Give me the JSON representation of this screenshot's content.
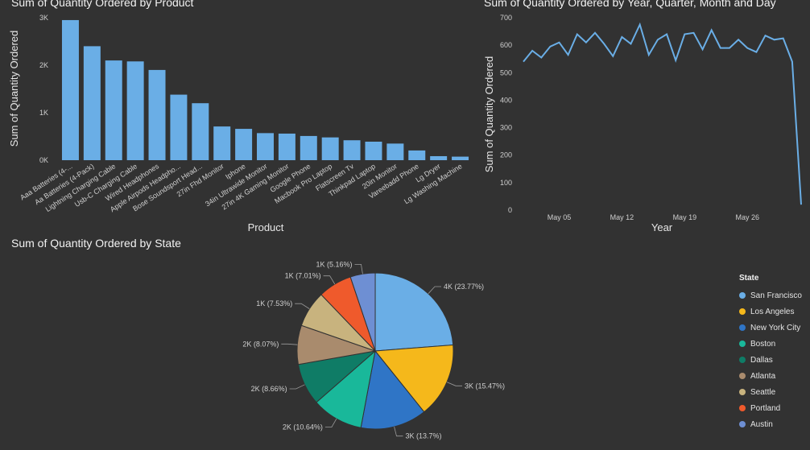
{
  "chart_data": [
    {
      "type": "bar",
      "title": "Sum of Quantity Ordered by Product",
      "xlabel": "Product",
      "ylabel": "Sum of Quantity Ordered",
      "ylim": [
        0,
        3000
      ],
      "yticks": [
        "0K",
        "1K",
        "2K",
        "3K"
      ],
      "categories": [
        "Aaa Batteries (4-...",
        "Aa Batteries (4-Pack)",
        "Lightning Charging Cable",
        "Usb-C Charging Cable",
        "Wired Headphones",
        "Apple Airpods Headpho...",
        "Bose Soundsport Head...",
        "27in Fhd Monitor",
        "Iphone",
        "34in Ultrawide Monitor",
        "27in 4K Gaming Monitor",
        "Google Phone",
        "Macbook Pro Laptop",
        "Flatscreen Tv",
        "Thinkpad Laptop",
        "20in Monitor",
        "Vareebadd Phone",
        "Lg Dryer",
        "Lg Washing Machine"
      ],
      "values": [
        2950,
        2400,
        2100,
        2080,
        1900,
        1380,
        1200,
        710,
        660,
        570,
        560,
        510,
        480,
        420,
        390,
        350,
        205,
        85,
        75
      ],
      "color": "#6aaee6"
    },
    {
      "type": "line",
      "title": "Sum of Quantity Ordered by Year, Quarter, Month and Day",
      "xlabel": "Year",
      "ylabel": "Sum of Quantity Ordered",
      "ylim": [
        0,
        700
      ],
      "yticks": [
        "0",
        "100",
        "200",
        "300",
        "400",
        "500",
        "600",
        "700"
      ],
      "xticks": [
        "May 05",
        "May 12",
        "May 19",
        "May 26"
      ],
      "x": [
        "May 01",
        "May 02",
        "May 03",
        "May 04",
        "May 05",
        "May 06",
        "May 07",
        "May 08",
        "May 09",
        "May 10",
        "May 11",
        "May 12",
        "May 13",
        "May 14",
        "May 15",
        "May 16",
        "May 17",
        "May 18",
        "May 19",
        "May 20",
        "May 21",
        "May 22",
        "May 23",
        "May 24",
        "May 25",
        "May 26",
        "May 27",
        "May 28",
        "May 29",
        "May 30",
        "May 31",
        "Jun 01"
      ],
      "values": [
        540,
        580,
        555,
        595,
        610,
        565,
        640,
        610,
        645,
        605,
        560,
        630,
        605,
        675,
        565,
        620,
        640,
        545,
        640,
        645,
        585,
        655,
        590,
        590,
        620,
        590,
        575,
        635,
        620,
        625,
        540,
        20
      ],
      "color": "#6aaee6"
    },
    {
      "type": "pie",
      "title": "Sum of Quantity Ordered by State",
      "legend_title": "State",
      "legend_position": "right",
      "slices": [
        {
          "name": "San Francisco",
          "label": "4K (23.77%)",
          "percent": 23.77,
          "color": "#6aaee6"
        },
        {
          "name": "Los Angeles",
          "label": "3K (15.47%)",
          "percent": 15.47,
          "color": "#f5b81b"
        },
        {
          "name": "New York City",
          "label": "3K (13.7%)",
          "percent": 13.7,
          "color": "#2f75c6"
        },
        {
          "name": "Boston",
          "label": "2K (10.64%)",
          "percent": 10.64,
          "color": "#19b89a"
        },
        {
          "name": "Dallas",
          "label": "2K (8.66%)",
          "percent": 8.66,
          "color": "#0f7c66"
        },
        {
          "name": "Atlanta",
          "label": "2K (8.07%)",
          "percent": 8.07,
          "color": "#a98b6d"
        },
        {
          "name": "Seattle",
          "label": "1K (7.53%)",
          "percent": 7.53,
          "color": "#c8b37e"
        },
        {
          "name": "Portland",
          "label": "1K (7.01%)",
          "percent": 7.01,
          "color": "#ef5a2c"
        },
        {
          "name": "Austin",
          "label": "1K (5.16%)",
          "percent": 5.16,
          "color": "#6e8fd3"
        }
      ]
    }
  ]
}
